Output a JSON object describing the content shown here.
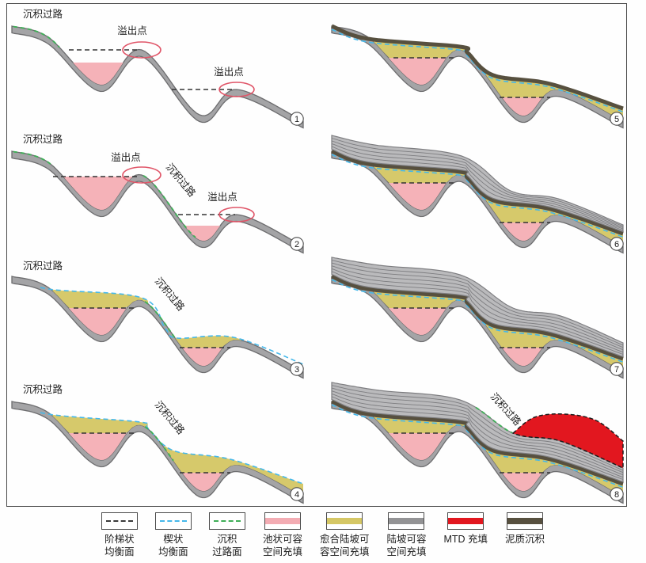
{
  "figure": {
    "background": "#fefefe",
    "frame_color": "#4a4a4a"
  },
  "labels": {
    "sediment_bypass": "沉积过路",
    "spill_point": "溢出点"
  },
  "panels": [
    {
      "number": "①",
      "digit": "1",
      "top_left_label": "沉积过路",
      "spill_labels": [
        "溢出点",
        "溢出点"
      ]
    },
    {
      "number": "②",
      "digit": "2",
      "top_left_label": "沉积过路",
      "mid_label": "沉积过路",
      "spill_labels": [
        "溢出点",
        "溢出点"
      ]
    },
    {
      "number": "③",
      "digit": "3",
      "top_left_label": "沉积过路",
      "mid_label": "沉积过路"
    },
    {
      "number": "④",
      "digit": "4",
      "top_left_label": "沉积过路",
      "mid_label": "沉积过路"
    },
    {
      "number": "⑤",
      "digit": "5"
    },
    {
      "number": "⑥",
      "digit": "6"
    },
    {
      "number": "⑦",
      "digit": "7"
    },
    {
      "number": "⑧",
      "digit": "8",
      "mid_label": "沉积过路"
    }
  ],
  "legend": [
    {
      "id": "stepped-equilibrium-surface",
      "label_lines": [
        "阶梯状",
        "均衡面"
      ],
      "swatch": "dashed",
      "color": "#3a3a3a"
    },
    {
      "id": "wedge-equilibrium-surface",
      "label_lines": [
        "楔状",
        "均衡面"
      ],
      "swatch": "dashed",
      "color": "#45b8ea"
    },
    {
      "id": "sediment-bypass-surface",
      "label_lines": [
        "沉积",
        "过路面"
      ],
      "swatch": "dashed",
      "color": "#3fae57"
    },
    {
      "id": "ponded-accommodation-fill",
      "label_lines": [
        "池状可容",
        "空间充填"
      ],
      "swatch": "fill",
      "color": "#f3acb3"
    },
    {
      "id": "healed-slope-accommodation-fill",
      "label_lines": [
        "愈合陆坡可",
        "容空间充填"
      ],
      "swatch": "fill",
      "color": "#d5c765"
    },
    {
      "id": "slope-accommodation-fill",
      "label_lines": [
        "陆坡可容",
        "空间充填"
      ],
      "swatch": "fill",
      "color": "#939395"
    },
    {
      "id": "mtd-fill",
      "label_lines": [
        "MTD 充填"
      ],
      "swatch": "fill",
      "color": "#e2171f"
    },
    {
      "id": "muddy-sediment",
      "label_lines": [
        "泥质沉积"
      ],
      "swatch": "fill",
      "color": "#57503f"
    }
  ],
  "colors": {
    "substrate_band": "#a4a4a6",
    "substrate_outline": "#6d6d6f",
    "ponded_pink": "#f5b2b8",
    "healed_yellow": "#d6c96b",
    "slope_gray_fill": "#bababc",
    "slope_gray_line": "#7d7d80",
    "mud_drape": "#57503f",
    "mtd_red": "#e2171f",
    "dash_black": "#333333",
    "dash_blue": "#45b8ea",
    "dash_green": "#3fae57",
    "spill_ellipse": "#e05568",
    "text": "#1d1d1d"
  }
}
